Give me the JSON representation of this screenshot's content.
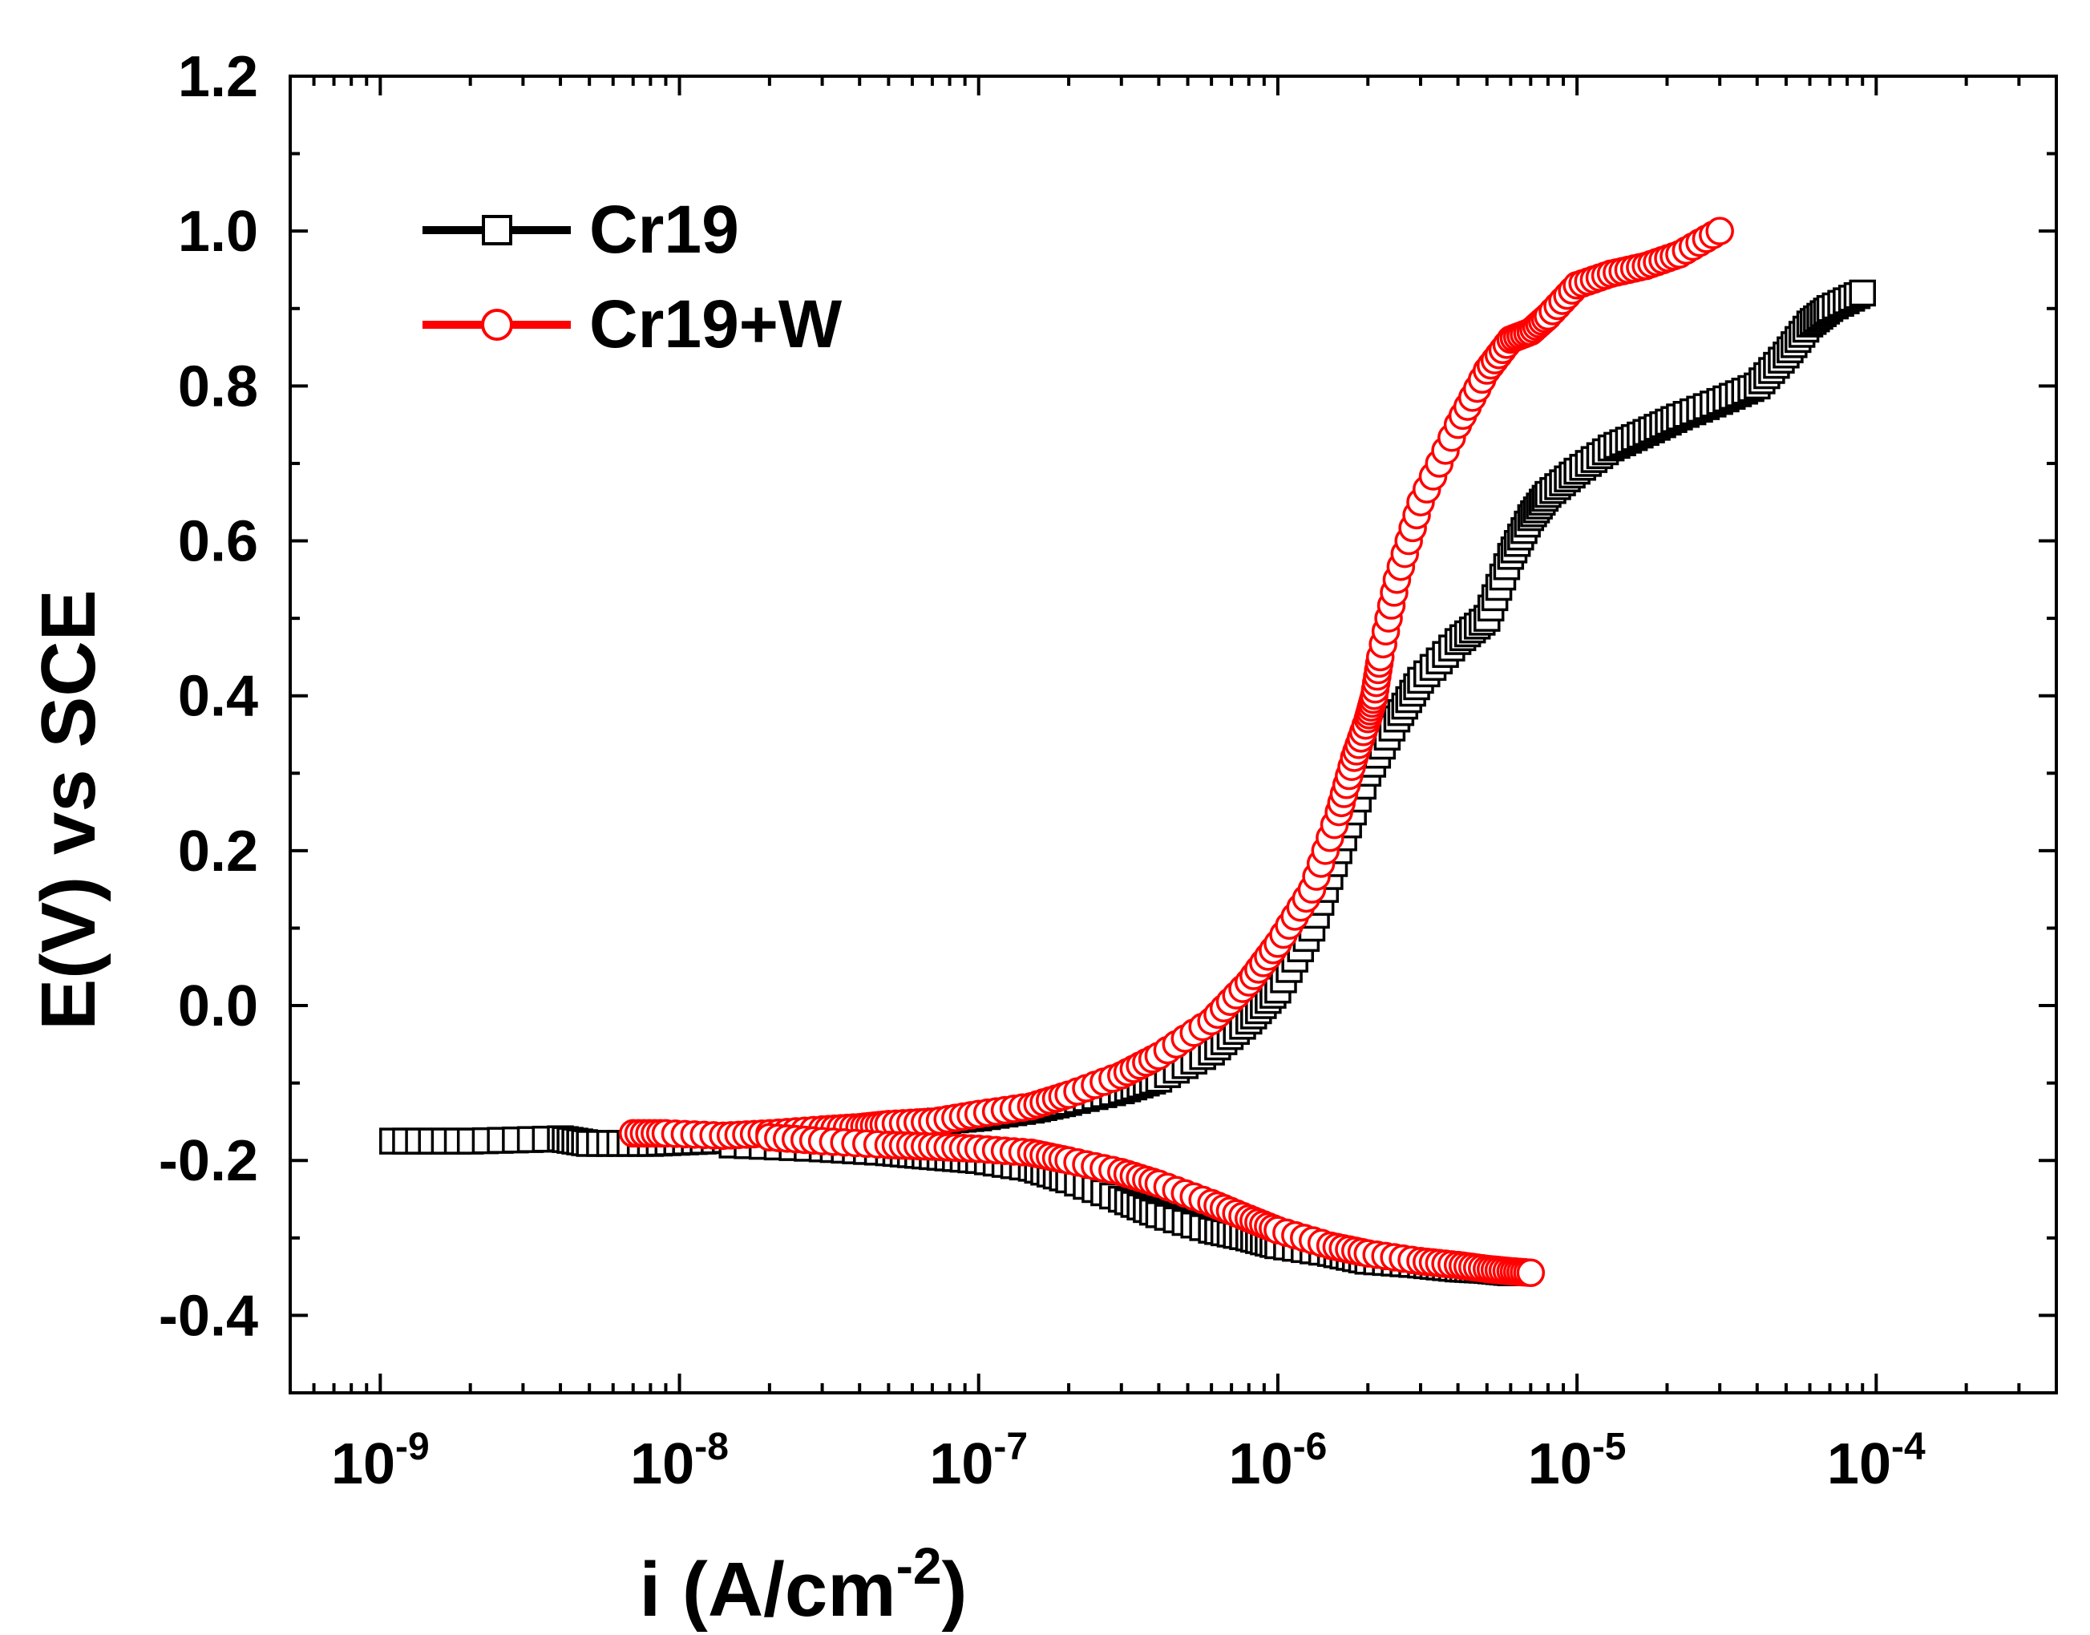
{
  "chart_data": {
    "type": "line",
    "title": "",
    "xlabel": "i (A/cm",
    "xlabel_sup": "-2",
    "xlabel_close": ")",
    "ylabel": "E(V) vs SCE",
    "xscale": "log",
    "xlim": [
      5e-10,
      0.0004
    ],
    "ylim": [
      -0.5,
      1.2
    ],
    "grid": false,
    "legend_position": "top-left",
    "x_ticks": [
      {
        "value": 1e-09,
        "base": "10",
        "exp": "-9"
      },
      {
        "value": 1e-08,
        "base": "10",
        "exp": "-8"
      },
      {
        "value": 1e-07,
        "base": "10",
        "exp": "-7"
      },
      {
        "value": 1e-06,
        "base": "10",
        "exp": "-6"
      },
      {
        "value": 1e-05,
        "base": "10",
        "exp": "-5"
      },
      {
        "value": 0.0001,
        "base": "10",
        "exp": "-4"
      }
    ],
    "y_ticks": [
      {
        "value": 1.2,
        "label": "1.2"
      },
      {
        "value": 1.0,
        "label": "1.0"
      },
      {
        "value": 0.8,
        "label": "0.8"
      },
      {
        "value": 0.6,
        "label": "0.6"
      },
      {
        "value": 0.4,
        "label": "0.4"
      },
      {
        "value": 0.2,
        "label": "0.2"
      },
      {
        "value": 0.0,
        "label": "0.0"
      },
      {
        "value": -0.2,
        "label": "-0.2"
      },
      {
        "value": -0.4,
        "label": "-0.4"
      }
    ],
    "series": [
      {
        "name": "Cr19",
        "color": "#000000",
        "marker": "square",
        "branches": [
          {
            "x": [
              1.1e-09,
              2e-09,
              4e-09,
              5e-09,
              8e-09,
              1.2e-08,
              2e-08,
              3e-08,
              4e-08,
              5e-08,
              7e-08,
              1e-07,
              1.5e-07,
              2e-07,
              3e-07,
              4e-07,
              6e-07,
              8e-07,
              1e-06,
              1.3e-06,
              1.6e-06,
              2e-06,
              2.5e-06,
              3e-06,
              4e-06,
              5e-06,
              6e-06,
              7e-06,
              8e-06,
              1e-05,
              1.3e-05,
              1.7e-05,
              2.2e-05,
              3e-05,
              4e-05,
              5e-05,
              6e-05,
              7e-05,
              9e-05
            ],
            "y": [
              -0.175,
              -0.175,
              -0.172,
              -0.178,
              -0.178,
              -0.175,
              -0.172,
              -0.165,
              -0.16,
              -0.155,
              -0.15,
              -0.145,
              -0.135,
              -0.125,
              -0.11,
              -0.095,
              -0.06,
              -0.02,
              0.02,
              0.1,
              0.2,
              0.3,
              0.37,
              0.42,
              0.47,
              0.5,
              0.58,
              0.63,
              0.66,
              0.69,
              0.72,
              0.74,
              0.76,
              0.78,
              0.8,
              0.84,
              0.88,
              0.9,
              0.92
            ]
          },
          {
            "x": [
              1.5e-08,
              3e-08,
              5e-08,
              7e-08,
              1e-07,
              1.5e-07,
              2e-07,
              3e-07,
              4e-07,
              6e-07,
              8e-07,
              1e-06,
              1.5e-06,
              2e-06,
              3e-06,
              4e-06,
              5e-06,
              6e-06
            ],
            "y": [
              -0.18,
              -0.185,
              -0.19,
              -0.195,
              -0.2,
              -0.21,
              -0.225,
              -0.25,
              -0.27,
              -0.29,
              -0.3,
              -0.31,
              -0.32,
              -0.33,
              -0.335,
              -0.34,
              -0.342,
              -0.345
            ]
          }
        ]
      },
      {
        "name": "Cr19+W",
        "color": "#ff0000",
        "marker": "circle",
        "branches": [
          {
            "x": [
              7e-09,
              9e-09,
              1.4e-08,
              2e-08,
              3e-08,
              4e-08,
              5e-08,
              7e-08,
              1e-07,
              1.5e-07,
              2e-07,
              3e-07,
              4e-07,
              6e-07,
              8e-07,
              1e-06,
              1.3e-06,
              1.6e-06,
              1.8e-06,
              2e-06,
              2.1e-06,
              2.2e-06,
              2.5e-06,
              3e-06,
              4e-06,
              5e-06,
              6e-06,
              7e-06,
              8e-06,
              1e-05,
              1.3e-05,
              1.7e-05,
              2.2e-05,
              3e-05
            ],
            "y": [
              -0.165,
              -0.165,
              -0.168,
              -0.165,
              -0.16,
              -0.157,
              -0.153,
              -0.15,
              -0.14,
              -0.13,
              -0.115,
              -0.09,
              -0.065,
              -0.02,
              0.03,
              0.08,
              0.15,
              0.25,
              0.32,
              0.37,
              0.4,
              0.45,
              0.55,
              0.65,
              0.75,
              0.82,
              0.86,
              0.87,
              0.89,
              0.93,
              0.945,
              0.955,
              0.97,
              1.0
            ]
          },
          {
            "x": [
              2e-08,
              3e-08,
              5e-08,
              7e-08,
              1e-07,
              1.5e-07,
              2e-07,
              3e-07,
              4e-07,
              6e-07,
              8e-07,
              1e-06,
              1.5e-06,
              2e-06,
              3e-06,
              4e-06,
              5e-06,
              6e-06,
              7e-06
            ],
            "y": [
              -0.17,
              -0.175,
              -0.18,
              -0.182,
              -0.185,
              -0.19,
              -0.2,
              -0.215,
              -0.23,
              -0.255,
              -0.275,
              -0.29,
              -0.31,
              -0.32,
              -0.33,
              -0.335,
              -0.34,
              -0.343,
              -0.345
            ]
          }
        ]
      }
    ]
  }
}
